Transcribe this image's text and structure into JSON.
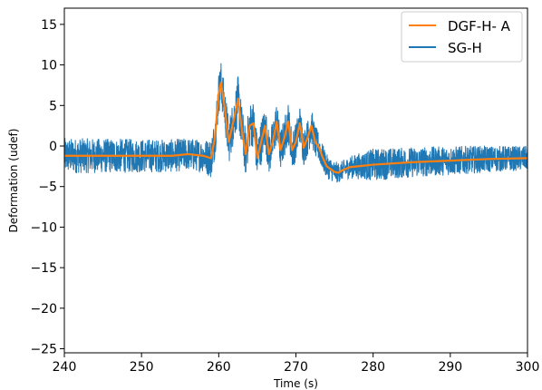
{
  "chart_data": {
    "type": "line",
    "title": "",
    "xlabel": "Time (s)",
    "ylabel": "Deformation (udef)",
    "xlim": [
      240,
      300
    ],
    "ylim": [
      -25.5,
      17
    ],
    "xticks": [
      240,
      250,
      260,
      270,
      280,
      290,
      300
    ],
    "yticks": [
      -25,
      -20,
      -15,
      -10,
      -5,
      0,
      5,
      10,
      15
    ],
    "grid": false,
    "legend_position": "top-right",
    "series": [
      {
        "name": "DGF-H- A",
        "color": "#ff7f0e",
        "x": [
          240,
          250,
          254,
          256,
          258,
          259,
          259.5,
          260,
          260.3,
          260.8,
          261.3,
          262,
          262.5,
          263,
          263.5,
          264,
          264.5,
          265,
          265.5,
          266,
          266.5,
          267,
          267.5,
          268,
          268.5,
          269,
          269.5,
          270,
          270.5,
          271,
          271.5,
          272,
          272.5,
          273,
          273.5,
          274,
          275,
          275.5,
          276,
          277,
          278,
          280,
          285,
          290,
          295,
          300
        ],
        "y": [
          -1.2,
          -1.2,
          -1.2,
          -1.0,
          -1.2,
          -1.5,
          1.0,
          6.5,
          7.8,
          4.5,
          0.5,
          3.5,
          5.8,
          2.0,
          -1.0,
          2.5,
          2.8,
          -1.5,
          0.5,
          2.5,
          -1.0,
          0.5,
          3.0,
          -0.5,
          1.0,
          3.0,
          -0.5,
          0.5,
          2.8,
          -0.2,
          1.0,
          2.5,
          0.5,
          -0.2,
          -1.5,
          -2.5,
          -3.2,
          -3.3,
          -3.0,
          -2.6,
          -2.5,
          -2.3,
          -2.0,
          -1.8,
          -1.6,
          -1.5
        ]
      },
      {
        "name": "SG-H",
        "color": "#1f77b4",
        "x": [
          240,
          250,
          254,
          256,
          258,
          259,
          259.5,
          260,
          260.3,
          260.8,
          261.3,
          262,
          262.5,
          263,
          263.5,
          264,
          264.5,
          265,
          265.5,
          266,
          266.5,
          267,
          267.5,
          268,
          268.5,
          269,
          269.5,
          270,
          270.5,
          271,
          271.5,
          272,
          272.5,
          273,
          273.5,
          274,
          275,
          275.5,
          276,
          277,
          278,
          280,
          285,
          290,
          295,
          300
        ],
        "y": [
          -1.2,
          -1.2,
          -1.2,
          -1.0,
          -1.2,
          -1.5,
          1.0,
          6.5,
          7.8,
          4.5,
          0.5,
          3.5,
          5.8,
          2.0,
          -1.0,
          2.5,
          2.8,
          -1.5,
          0.5,
          2.5,
          -1.0,
          0.5,
          3.0,
          -0.5,
          1.0,
          3.0,
          -0.5,
          0.5,
          2.8,
          -0.2,
          1.0,
          2.5,
          0.5,
          -0.2,
          -1.5,
          -2.5,
          -3.2,
          -3.3,
          -3.0,
          -2.6,
          -2.5,
          -2.3,
          -2.0,
          -1.8,
          -1.6,
          -1.5
        ],
        "noise_band_halfwidth_x": [
          240,
          258,
          259,
          263,
          272,
          274,
          276,
          280,
          290,
          300
        ],
        "noise_band_halfwidth": [
          2.2,
          2.0,
          2.5,
          3.0,
          2.2,
          1.5,
          1.2,
          2.0,
          1.8,
          1.5
        ]
      }
    ]
  }
}
